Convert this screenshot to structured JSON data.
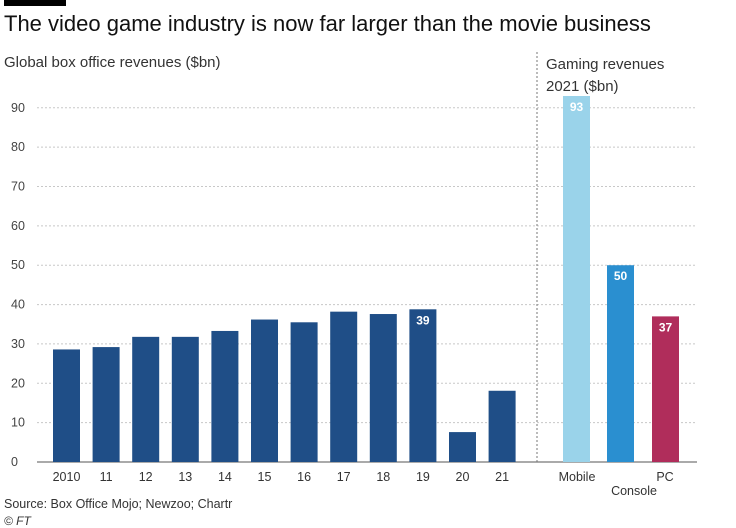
{
  "header": {
    "title": "The video game industry is now far larger than the movie business"
  },
  "chart_data": [
    {
      "type": "bar",
      "title": "Global box office revenues ($bn)",
      "categories": [
        "2010",
        "11",
        "12",
        "13",
        "14",
        "15",
        "16",
        "17",
        "18",
        "19",
        "20",
        "21"
      ],
      "values": [
        28.6,
        29.2,
        31.8,
        31.8,
        33.3,
        36.2,
        35.5,
        38.2,
        37.6,
        38.8,
        7.6,
        18.1
      ],
      "data_labels": {
        "19": "39"
      },
      "ylim": [
        0,
        93
      ],
      "yticks": [
        "0",
        "10",
        "20",
        "30",
        "40",
        "50",
        "60",
        "70",
        "80",
        "90"
      ],
      "color": "#1f4e87",
      "grid": true
    },
    {
      "type": "bar",
      "title": "Gaming revenues 2021 ($bn)",
      "categories": [
        "Mobile",
        "Console",
        "PC"
      ],
      "values": [
        93,
        50,
        37
      ],
      "data_labels": [
        "93",
        "50",
        "37"
      ],
      "colors": [
        "#9ad3ea",
        "#2a8fd0",
        "#b02d5b"
      ],
      "ylim": [
        0,
        93
      ]
    }
  ],
  "footer": {
    "source": "Source: Box Office Mojo; Newzoo; Chartr",
    "credit": "© FT"
  }
}
